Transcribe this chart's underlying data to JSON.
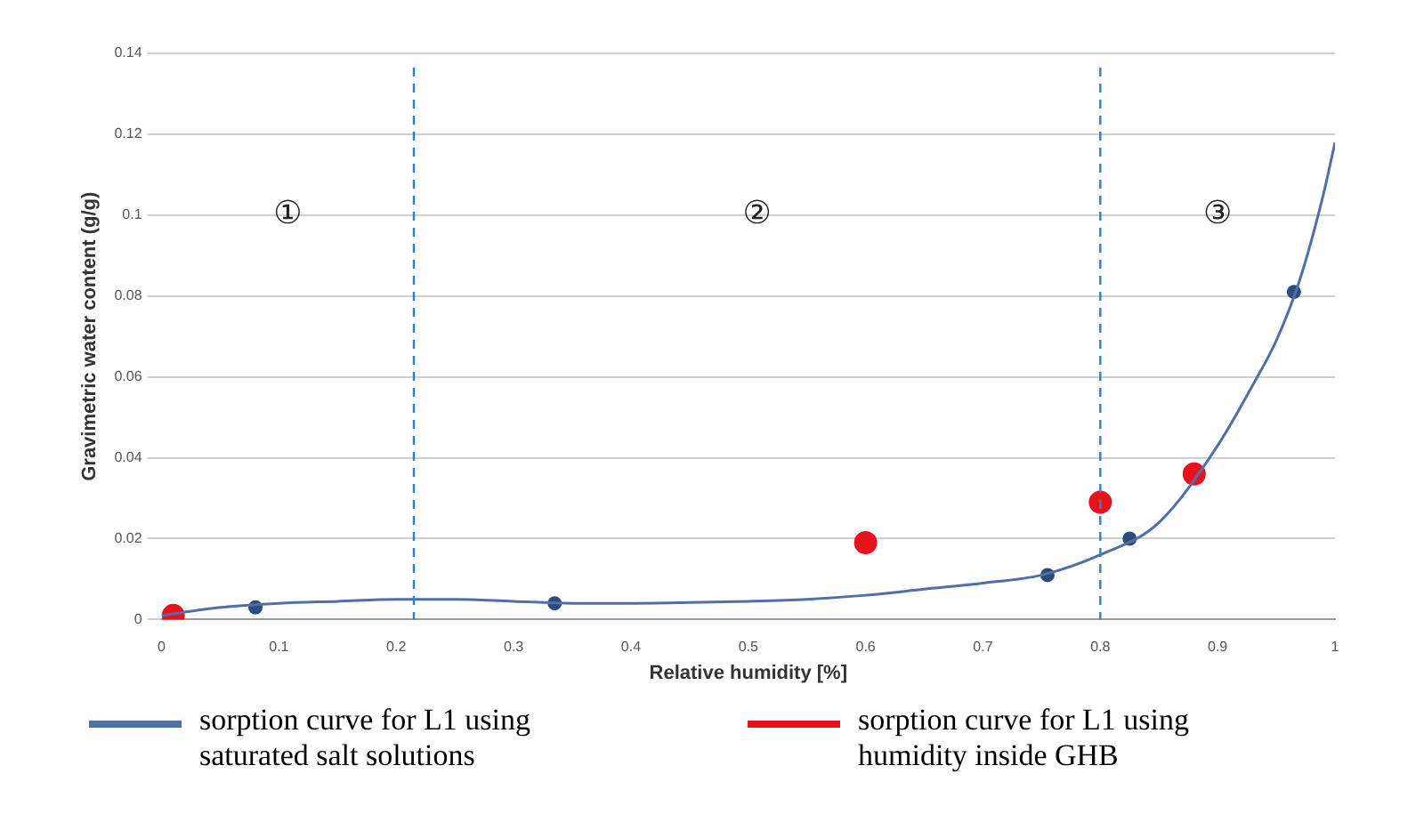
{
  "chart_data": {
    "type": "scatter",
    "xlabel": "Relative humidity [%]",
    "ylabel": "Gravimetric water content (g/g)",
    "xlim": [
      0,
      1
    ],
    "xticks": [
      0,
      0.1,
      0.2,
      0.3,
      0.4,
      0.5,
      0.6,
      0.7,
      0.8,
      0.9,
      1
    ],
    "ylim": [
      0,
      0.14
    ],
    "yticks": [
      0,
      0.02,
      0.04,
      0.06,
      0.08,
      0.1,
      0.12,
      0.14
    ],
    "grid": "y",
    "legend": "bottom",
    "series": [
      {
        "name": "sorption curve for L1 using saturated salt solutions",
        "type": "line",
        "marker": "none",
        "color": "#4f6fa8",
        "x": [
          0,
          0.05,
          0.1,
          0.15,
          0.2,
          0.25,
          0.3,
          0.35,
          0.4,
          0.45,
          0.5,
          0.55,
          0.6,
          0.65,
          0.7,
          0.75,
          0.8,
          0.85,
          0.9,
          0.93,
          0.95,
          0.97,
          0.99,
          1
        ],
        "values": [
          0.001,
          0.003,
          0.004,
          0.0045,
          0.005,
          0.005,
          0.0045,
          0.004,
          0.004,
          0.0042,
          0.0045,
          0.005,
          0.006,
          0.0075,
          0.009,
          0.011,
          0.016,
          0.024,
          0.043,
          0.058,
          0.069,
          0.084,
          0.105,
          0.118
        ]
      },
      {
        "type": "scatter",
        "marker": "circle",
        "color": "#2f4b7c",
        "x": [
          0.08,
          0.335,
          0.755,
          0.825,
          0.965
        ],
        "values": [
          0.003,
          0.004,
          0.011,
          0.02,
          0.081
        ]
      },
      {
        "name": "sorption curve for L1 using humidity inside GHB",
        "marker": "circle",
        "color": "#e8121c",
        "x": [
          0.01,
          0.6,
          0.8,
          0.88
        ],
        "values": [
          0.001,
          0.019,
          0.029,
          0.036
        ]
      }
    ],
    "ref_lines": [
      {
        "axis": "x",
        "value": 0.215,
        "color": "#2f7fd0",
        "line_style": "dashed"
      },
      {
        "axis": "x",
        "value": 0.8,
        "color": "#2f7fd0",
        "line_style": "dashed"
      }
    ],
    "annotations": [
      "①",
      "②",
      "③"
    ]
  }
}
